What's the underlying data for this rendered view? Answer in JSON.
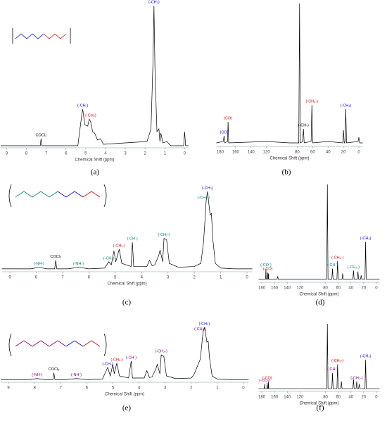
{
  "chart_data": [
    {
      "type": "line",
      "caption": "(a)",
      "x_label": "Chemical Shift (ppm)",
      "color": "#000000",
      "xlim": [
        9.3,
        -0.2
      ],
      "xticks": [
        9,
        8,
        7,
        6,
        5,
        4,
        3,
        2,
        1,
        0
      ],
      "ylim": [
        0,
        100
      ],
      "x": [
        9.3,
        7.3,
        7.26,
        7.22,
        5.4,
        5.2,
        5.15,
        5.05,
        4.9,
        4.82,
        4.75,
        4.65,
        4.55,
        4.4,
        4.25,
        4.1,
        1.9,
        1.7,
        1.6,
        1.55,
        1.5,
        1.4,
        1.3,
        1.25,
        1.2,
        1.1,
        0.9,
        0.7,
        0.05,
        0.0,
        -0.05,
        -0.2
      ],
      "values": [
        0,
        0,
        5,
        0,
        0,
        22,
        26,
        15,
        14,
        19,
        17,
        10,
        9,
        4,
        5,
        1,
        3,
        12,
        60,
        100,
        55,
        10,
        12,
        3,
        9,
        2,
        3,
        0,
        0,
        10,
        0,
        0
      ],
      "annotations": [
        {
          "text": "(-CH₃)",
          "x": 1.55,
          "color": "#0000ff"
        },
        {
          "text": "(-CH-)",
          "x": 5.15,
          "color": "#0000ff"
        },
        {
          "text": "(-CH₂)",
          "x": 4.75,
          "color": "#e00000"
        },
        {
          "text": "COCl₃",
          "x": 7.26,
          "color": "#000000"
        }
      ]
    },
    {
      "type": "line",
      "caption": "(b)",
      "x_label": "Chemical Shift (ppm)",
      "color": "#000000",
      "xlim": [
        185,
        -5
      ],
      "xticks": [
        180,
        160,
        140,
        120,
        80,
        60,
        40,
        20,
        0
      ],
      "ylim": [
        0,
        100
      ],
      "x": [
        185,
        176,
        175,
        174,
        170.5,
        169.8,
        169,
        120,
        90,
        78,
        77,
        76,
        73,
        72,
        71,
        62,
        61,
        60,
        40,
        21,
        20,
        19,
        18,
        17,
        16,
        1,
        0,
        -1,
        -5
      ],
      "values": [
        1,
        2,
        6,
        1,
        2,
        16,
        1,
        2,
        1,
        1,
        100,
        1,
        2,
        11,
        1,
        2,
        28,
        1,
        2,
        1,
        10,
        1,
        2,
        25,
        1,
        2,
        5,
        1,
        1
      ],
      "annotations": [
        {
          "text": "(CO)",
          "x": 175,
          "color": "#0000ff"
        },
        {
          "text": "(CO)",
          "x": 169.8,
          "color": "#e00000"
        },
        {
          "text": "(-CH-)",
          "x": 72,
          "color": "#000000"
        },
        {
          "text": "(-CH₂-)",
          "x": 61,
          "color": "#e00000"
        },
        {
          "text": "(-CH₃)",
          "x": 17,
          "color": "#0000ff"
        }
      ]
    },
    {
      "type": "line",
      "caption": "(c)",
      "x_label": "Chemical Shift (ppm)",
      "color": "#000000",
      "xlim": [
        9.3,
        -0.2
      ],
      "xticks": [
        9,
        8,
        7,
        6,
        5,
        4,
        3,
        2,
        1,
        0
      ],
      "ylim": [
        0,
        100
      ],
      "x": [
        9.3,
        8.2,
        7.9,
        7.6,
        7.3,
        7.26,
        7.22,
        6.8,
        6.4,
        6.0,
        5.4,
        5.25,
        5.15,
        5.05,
        4.98,
        4.85,
        4.75,
        4.4,
        4.35,
        4.3,
        3.8,
        3.7,
        3.6,
        3.5,
        3.35,
        3.3,
        3.2,
        3.15,
        3.05,
        2.95,
        2.6,
        2.0,
        1.75,
        1.65,
        1.6,
        1.55,
        1.5,
        1.45,
        1.4,
        1.35,
        1.3,
        1.2,
        1.0,
        0.5,
        -0.2
      ],
      "values": [
        1,
        1,
        3,
        1,
        1,
        12,
        1,
        1,
        3,
        1,
        2,
        10,
        6,
        24,
        10,
        26,
        8,
        4,
        35,
        4,
        4,
        12,
        5,
        6,
        18,
        25,
        10,
        40,
        38,
        8,
        3,
        4,
        8,
        35,
        60,
        88,
        100,
        85,
        70,
        72,
        40,
        8,
        2,
        1,
        1
      ],
      "annotations": [
        {
          "text": "(-NH-)",
          "x": 7.9,
          "color": "#008080"
        },
        {
          "text": "COCl₃",
          "x": 7.26,
          "color": "#000000"
        },
        {
          "text": "(-NH-)",
          "x": 6.4,
          "color": "#008080"
        },
        {
          "text": "(-CH-)",
          "x": 5.25,
          "color": "#008080"
        },
        {
          "text": "(-CH₂-)",
          "x": 4.85,
          "color": "#e00000"
        },
        {
          "text": "(-CH-)",
          "x": 4.35,
          "color": "#008080"
        },
        {
          "text": "(-CH₂-)",
          "x": 3.15,
          "color": "#008080"
        },
        {
          "text": "(-CH₂-)",
          "x": 1.65,
          "color": "#008080"
        },
        {
          "text": "(-CH₃)",
          "x": 1.5,
          "color": "#0000ff"
        }
      ]
    },
    {
      "type": "line",
      "caption": "(d)",
      "x_label": "Chemical Shift (ppm)",
      "color": "#000000",
      "xlim": [
        185,
        -5
      ],
      "xticks": [
        180,
        160,
        140,
        120,
        80,
        60,
        40,
        20,
        0
      ],
      "ylim": [
        0,
        100
      ],
      "x": [
        185,
        174,
        173.5,
        173,
        171,
        170.5,
        170,
        169.5,
        169,
        156,
        155,
        154,
        78,
        77,
        76,
        70,
        69,
        68,
        62,
        61,
        60,
        54,
        53,
        52,
        37,
        36,
        35,
        30,
        29,
        28,
        25,
        24,
        23,
        18,
        17,
        16,
        -5
      ],
      "values": [
        1,
        1,
        12,
        1,
        1,
        8,
        1,
        7,
        1,
        1,
        4,
        1,
        1,
        100,
        1,
        1,
        12,
        1,
        1,
        20,
        1,
        1,
        7,
        1,
        1,
        10,
        1,
        1,
        9,
        1,
        1,
        5,
        1,
        1,
        40,
        1,
        1
      ],
      "annotations": [
        {
          "text": "(-CO-)",
          "x": 173.5,
          "color": "#008080"
        },
        {
          "text": "(-CO)",
          "x": 170.5,
          "color": "#e00000"
        },
        {
          "text": "(-CH-)",
          "x": 69,
          "color": "#008080"
        },
        {
          "text": "(-CH₂-)",
          "x": 61,
          "color": "#e00000"
        },
        {
          "text": "(-CH₂-)",
          "x": 36,
          "color": "#008080"
        },
        {
          "text": "(-CH₃)",
          "x": 17,
          "color": "#0000ff"
        }
      ]
    },
    {
      "type": "line",
      "caption": "(e)",
      "x_label": "Chemical Shift (ppm)",
      "color": "#000000",
      "xlim": [
        9.3,
        -0.2
      ],
      "xticks": [
        9,
        8,
        7,
        6,
        5,
        4,
        3,
        2,
        1,
        0
      ],
      "ylim": [
        0,
        100
      ],
      "x": [
        9.3,
        8.2,
        7.9,
        7.6,
        7.3,
        7.26,
        7.22,
        6.8,
        6.4,
        6.0,
        5.4,
        5.2,
        5.1,
        5.0,
        4.95,
        4.85,
        4.75,
        4.4,
        4.3,
        4.25,
        3.8,
        3.7,
        3.6,
        3.5,
        3.35,
        3.3,
        3.2,
        3.15,
        3.05,
        2.95,
        2.6,
        2.0,
        1.9,
        1.65,
        1.6,
        1.55,
        1.5,
        1.45,
        1.4,
        1.35,
        1.3,
        1.2,
        1.0,
        0.5,
        -0.2
      ],
      "values": [
        1,
        1,
        3,
        1,
        1,
        14,
        1,
        1,
        3,
        1,
        2,
        24,
        8,
        30,
        12,
        32,
        8,
        4,
        36,
        4,
        4,
        18,
        5,
        6,
        22,
        30,
        12,
        48,
        45,
        8,
        3,
        4,
        10,
        40,
        65,
        90,
        100,
        88,
        72,
        74,
        42,
        8,
        2,
        1,
        1
      ],
      "annotations": [
        {
          "text": "(-NH-)",
          "x": 7.9,
          "color": "#800080"
        },
        {
          "text": "COCl₃",
          "x": 7.26,
          "color": "#000000"
        },
        {
          "text": "(-NH-)",
          "x": 6.4,
          "color": "#800080"
        },
        {
          "text": "(-CH-)",
          "x": 5.2,
          "color": "#0000ff"
        },
        {
          "text": "(-CH₂-)",
          "x": 4.85,
          "color": "#e00000"
        },
        {
          "text": "(-CH-)",
          "x": 4.3,
          "color": "#800080"
        },
        {
          "text": "(-CH₂-)",
          "x": 3.15,
          "color": "#800080"
        },
        {
          "text": "(-CH₂-)",
          "x": 1.65,
          "color": "#800080"
        },
        {
          "text": "(-CH₃)",
          "x": 1.5,
          "color": "#0000ff"
        }
      ]
    },
    {
      "type": "line",
      "caption": "(f)",
      "x_label": "Chemical Shift (ppm)",
      "color": "#000000",
      "xlim": [
        185,
        -5
      ],
      "xticks": [
        180,
        160,
        140,
        120,
        80,
        60,
        40,
        20,
        0
      ],
      "ylim": [
        0,
        100
      ],
      "x": [
        185,
        176,
        175.5,
        175,
        172,
        171.5,
        171,
        170,
        169.5,
        169,
        78,
        77,
        76,
        70,
        69,
        68,
        62,
        61,
        60,
        56,
        55,
        54,
        37,
        36,
        35,
        32,
        31,
        30,
        28,
        27,
        26,
        18,
        17,
        16,
        -5
      ],
      "values": [
        1,
        1,
        8,
        1,
        1,
        10,
        1,
        1,
        12,
        1,
        1,
        100,
        1,
        1,
        25,
        1,
        1,
        38,
        1,
        1,
        12,
        1,
        1,
        15,
        1,
        1,
        12,
        1,
        1,
        8,
        1,
        1,
        45,
        1,
        1
      ],
      "annotations": [
        {
          "text": "(-CO-)",
          "x": 175.5,
          "color": "#800080"
        },
        {
          "text": "(-CO)",
          "x": 171.5,
          "color": "#e00000"
        },
        {
          "text": "(-CH-)",
          "x": 69,
          "color": "#800080"
        },
        {
          "text": "(-CH₂-)",
          "x": 61,
          "color": "#e00000"
        },
        {
          "text": "(-CH₂-)",
          "x": 31,
          "color": "#800080"
        },
        {
          "text": "(-CH₃)",
          "x": 17,
          "color": "#0000ff"
        }
      ]
    }
  ]
}
